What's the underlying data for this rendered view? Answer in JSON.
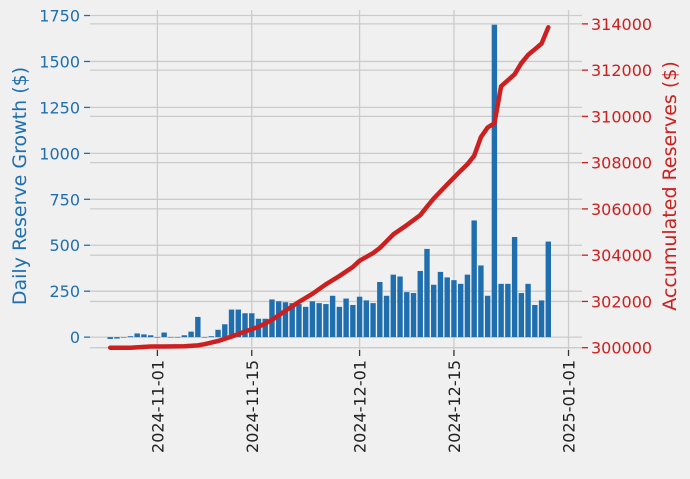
{
  "chart_data": {
    "type": "bar",
    "xlabel": "",
    "ylabel": "Daily Reserve Growth ($)",
    "y2label": "Accumulated Reserves ($)",
    "x_tick_labels": [
      "2024-11-01",
      "2024-11-15",
      "2024-12-01",
      "2024-12-15",
      "2025-01-01"
    ],
    "y_tick_labels": [
      "0",
      "250",
      "500",
      "750",
      "1000",
      "1250",
      "1500",
      "1750"
    ],
    "y2_tick_labels": [
      "300000",
      "302000",
      "304000",
      "306000",
      "308000",
      "310000",
      "312000",
      "314000"
    ],
    "xlim": [
      "2024-10-22",
      "2025-01-03"
    ],
    "ylim": [
      -70,
      1780
    ],
    "y2lim": [
      299900,
      314600
    ],
    "grid": true,
    "colors": {
      "bars": "#1f6faf",
      "line": "#cc1f1f",
      "left_axis": "#1f6faf",
      "right_axis": "#cc1f1f",
      "background": "#f0f0f0",
      "grid": "#cbcbcb"
    },
    "series": [
      {
        "axis": "left",
        "kind": "bar",
        "x": [
          "2024-10-25",
          "2024-10-26",
          "2024-10-27",
          "2024-10-28",
          "2024-10-29",
          "2024-10-30",
          "2024-10-31",
          "2024-11-01",
          "2024-11-02",
          "2024-11-03",
          "2024-11-04",
          "2024-11-05",
          "2024-11-06",
          "2024-11-07",
          "2024-11-08",
          "2024-11-09",
          "2024-11-10",
          "2024-11-11",
          "2024-11-12",
          "2024-11-13",
          "2024-11-14",
          "2024-11-15",
          "2024-11-16",
          "2024-11-17",
          "2024-11-18",
          "2024-11-19",
          "2024-11-20",
          "2024-11-21",
          "2024-11-22",
          "2024-11-23",
          "2024-11-24",
          "2024-11-25",
          "2024-11-26",
          "2024-11-27",
          "2024-11-28",
          "2024-11-29",
          "2024-11-30",
          "2024-12-01",
          "2024-12-02",
          "2024-12-03",
          "2024-12-04",
          "2024-12-05",
          "2024-12-06",
          "2024-12-07",
          "2024-12-08",
          "2024-12-09",
          "2024-12-10",
          "2024-12-11",
          "2024-12-12",
          "2024-12-13",
          "2024-12-14",
          "2024-12-15",
          "2024-12-16",
          "2024-12-17",
          "2024-12-18",
          "2024-12-19",
          "2024-12-20",
          "2024-12-21",
          "2024-12-22",
          "2024-12-23",
          "2024-12-24",
          "2024-12-25",
          "2024-12-26",
          "2024-12-27",
          "2024-12-28",
          "2024-12-29"
        ],
        "values": [
          -10,
          -8,
          0,
          5,
          20,
          15,
          10,
          0,
          25,
          0,
          0,
          10,
          30,
          110,
          0,
          5,
          40,
          70,
          150,
          150,
          130,
          130,
          100,
          100,
          205,
          195,
          190,
          185,
          180,
          165,
          195,
          185,
          180,
          225,
          165,
          210,
          175,
          220,
          200,
          185,
          300,
          225,
          340,
          330,
          245,
          240,
          360,
          480,
          285,
          355,
          325,
          310,
          290,
          340,
          635,
          390,
          225,
          1700,
          290,
          290,
          545,
          240,
          290,
          175,
          200,
          520
        ]
      },
      {
        "axis": "right",
        "kind": "line",
        "x": [
          "2024-10-25",
          "2024-10-28",
          "2024-10-31",
          "2024-11-02",
          "2024-11-05",
          "2024-11-07",
          "2024-11-08",
          "2024-11-09",
          "2024-11-10",
          "2024-11-12",
          "2024-11-14",
          "2024-11-16",
          "2024-11-18",
          "2024-11-20",
          "2024-11-22",
          "2024-11-24",
          "2024-11-26",
          "2024-11-28",
          "2024-11-30",
          "2024-12-01",
          "2024-12-03",
          "2024-12-04",
          "2024-12-05",
          "2024-12-06",
          "2024-12-08",
          "2024-12-10",
          "2024-12-11",
          "2024-12-12",
          "2024-12-14",
          "2024-12-16",
          "2024-12-17",
          "2024-12-18",
          "2024-12-19",
          "2024-12-20",
          "2024-12-21",
          "2024-12-22",
          "2024-12-24",
          "2024-12-25",
          "2024-12-26",
          "2024-12-27",
          "2024-12-28",
          "2024-12-29"
        ],
        "values": [
          300000,
          300000,
          300050,
          300050,
          300060,
          300100,
          300150,
          300220,
          300290,
          300480,
          300700,
          300900,
          301200,
          301600,
          301980,
          302330,
          302740,
          303100,
          303490,
          303760,
          304090,
          304310,
          304600,
          304900,
          305300,
          305730,
          306100,
          306450,
          307060,
          307650,
          307930,
          308300,
          309100,
          309520,
          309700,
          311300,
          311820,
          312300,
          312660,
          312900,
          313150,
          313850
        ]
      }
    ]
  }
}
